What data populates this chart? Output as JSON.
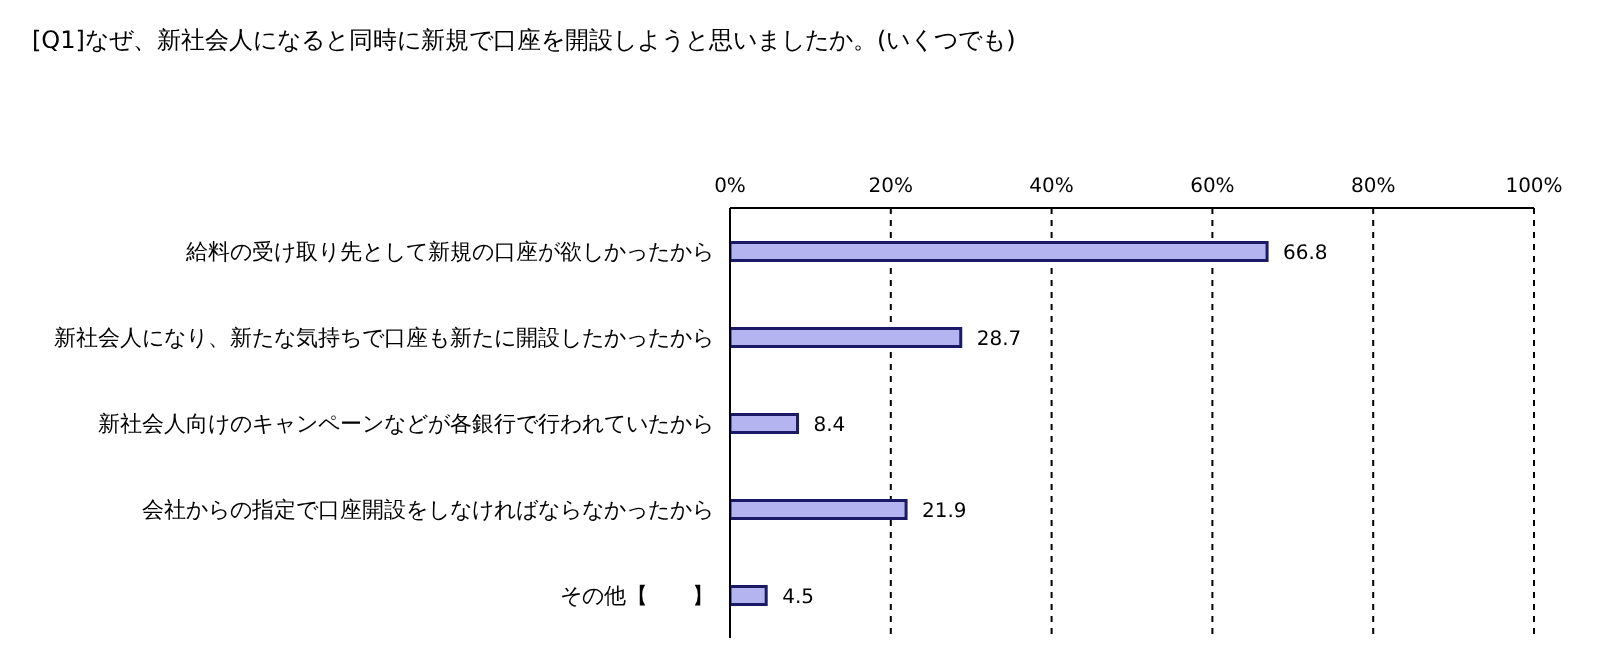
{
  "chart_data": {
    "type": "bar",
    "orientation": "horizontal",
    "title": "[Q1]なぜ、新社会人になると同時に新規で口座を開設しようと思いましたか。(いくつでも)",
    "categories": [
      "給料の受け取り先として新規の口座が欲しかったから",
      "新社会人になり、新たな気持ちで口座も新たに開設したかったから",
      "新社会人向けのキャンペーンなどが各銀行で行われていたから",
      "会社からの指定で口座開設をしなければならなかったから",
      "その他【　　】"
    ],
    "values": [
      66.8,
      28.7,
      8.4,
      21.9,
      4.5
    ],
    "color": "#b4b4f0",
    "xlim": [
      0,
      100
    ],
    "xticks": [
      {
        "value": 0,
        "label": "0%"
      },
      {
        "value": 20,
        "label": "20%"
      },
      {
        "value": 40,
        "label": "40%"
      },
      {
        "value": 60,
        "label": "60%"
      },
      {
        "value": 80,
        "label": "80%"
      },
      {
        "value": 100,
        "label": "100%"
      }
    ],
    "grid": "x",
    "data_labels": true
  }
}
